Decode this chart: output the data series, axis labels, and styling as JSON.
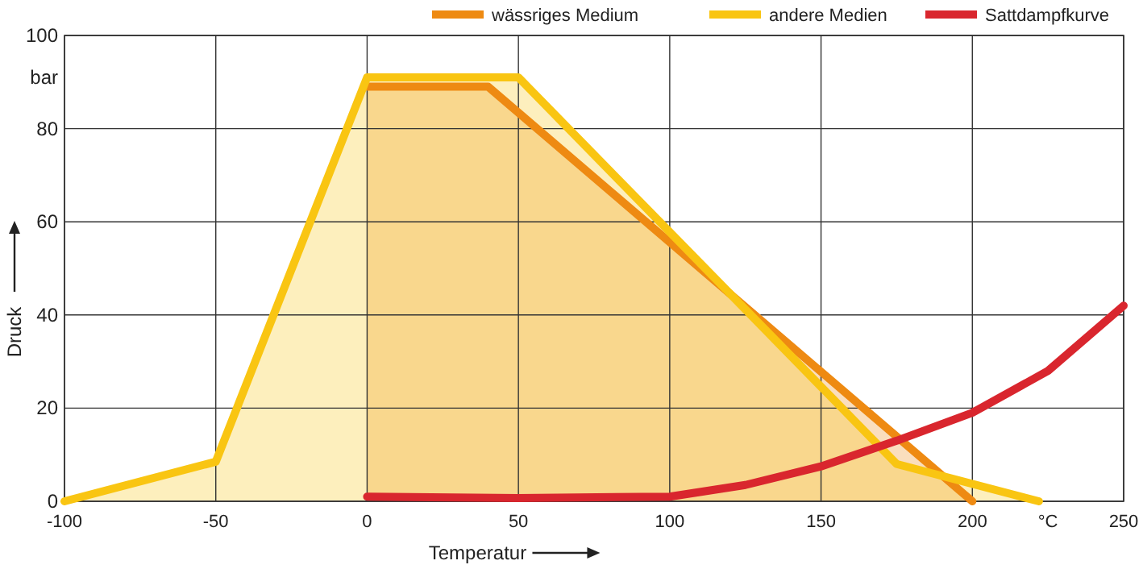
{
  "chart_data": {
    "type": "line",
    "xlabel": "Temperatur",
    "ylabel": "Druck",
    "xlim": [
      -100,
      250
    ],
    "ylim": [
      0,
      100
    ],
    "xticks": [
      -100,
      -50,
      0,
      50,
      100,
      150,
      200,
      {
        "value": 225,
        "label": "°C"
      },
      250
    ],
    "yticks": [
      0,
      20,
      40,
      60,
      80,
      {
        "value": 91,
        "label": "bar"
      },
      100
    ],
    "grid": true,
    "legend": "top right",
    "line_style": "solid",
    "marker": "none",
    "series": [
      {
        "name": "wässriges Medium",
        "type": "area",
        "color": "#ee8a12",
        "x": [
          0,
          40,
          200
        ],
        "values": [
          89,
          89,
          0
        ]
      },
      {
        "name": "andere Medien",
        "type": "area",
        "color": "#f9c512",
        "x": [
          -100,
          -50,
          0,
          50,
          175,
          222
        ],
        "values": [
          0,
          8.5,
          91,
          91,
          8,
          0
        ]
      },
      {
        "name": "Sattdampfkurve",
        "type": "line",
        "color": "#d9262e",
        "x": [
          0,
          50,
          100,
          125,
          150,
          175,
          200,
          225,
          250
        ],
        "values": [
          1,
          0.7,
          1,
          3.5,
          7.5,
          13,
          19,
          28,
          42
        ]
      }
    ]
  }
}
